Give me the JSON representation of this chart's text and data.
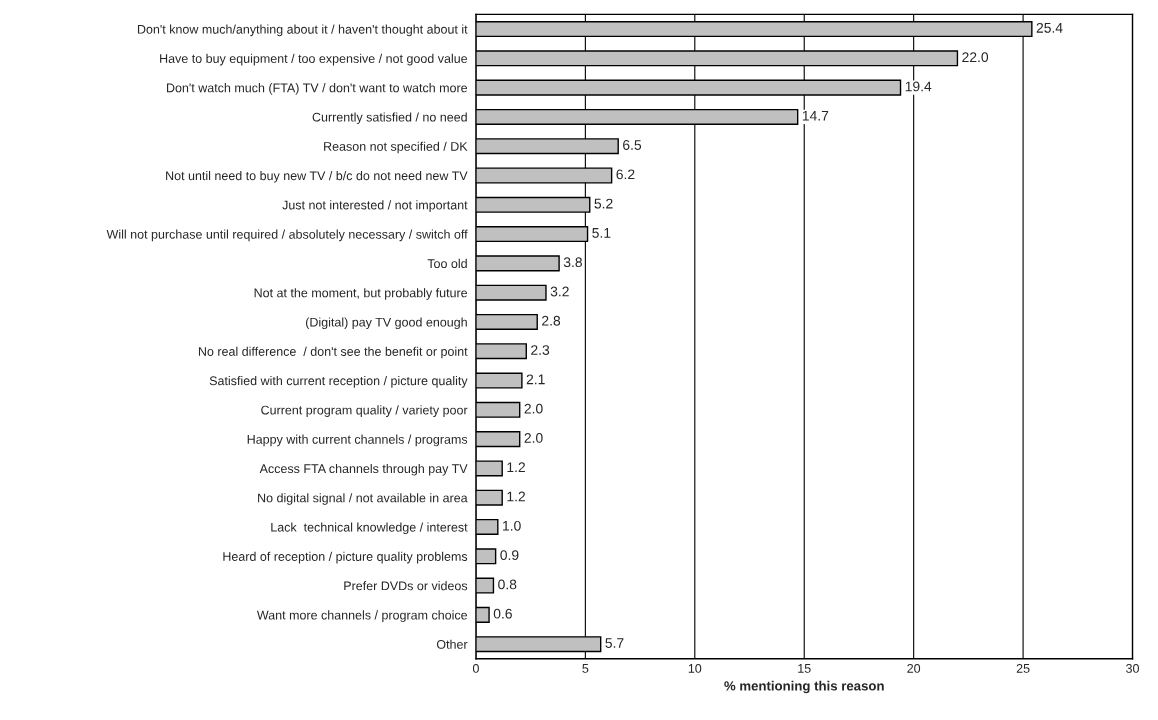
{
  "chart_data": {
    "type": "bar",
    "orientation": "horizontal",
    "xlabel": "% mentioning this reason",
    "categories": [
      "Don't know much/anything about it / haven't thought about it",
      "Have to buy equipment / too expensive / not good value",
      "Don't watch much (FTA) TV / don't want to watch more",
      "Currently satisfied / no need",
      "Reason not specified / DK",
      "Not until need to buy new TV / b/c do not need new TV",
      "Just not interested / not important",
      "Will not purchase until required / absolutely necessary / switch off",
      "Too old",
      "Not at the moment, but probably future",
      "(Digital) pay TV good enough",
      "No real difference  / don't see the benefit or point",
      "Satisfied with current reception / picture quality",
      "Current program quality / variety poor",
      "Happy with current channels / programs",
      "Access FTA channels through pay TV",
      "No digital signal / not available in area",
      "Lack  technical knowledge / interest",
      "Heard of reception / picture quality problems",
      "Prefer DVDs or videos",
      "Want more channels / program choice",
      "Other"
    ],
    "values": [
      25.4,
      22.0,
      19.4,
      14.7,
      6.5,
      6.2,
      5.2,
      5.1,
      3.8,
      3.2,
      2.8,
      2.3,
      2.1,
      2.0,
      2.0,
      1.2,
      1.2,
      1.0,
      0.9,
      0.8,
      0.6,
      5.7
    ],
    "value_labels": [
      "25.4",
      "22.0",
      "19.4",
      "14.7",
      "6.5",
      "6.2",
      "5.2",
      "5.1",
      "3.8",
      "3.2",
      "2.8",
      "2.3",
      "2.1",
      "2.0",
      "2.0",
      "1.2",
      "1.2",
      "1.0",
      "0.9",
      "0.8",
      "0.6",
      "5.7"
    ],
    "color": "#c0c0c0",
    "xlim": [
      0,
      30
    ],
    "xticks": [
      0,
      5,
      10,
      15,
      20,
      25,
      30
    ],
    "grid": "x",
    "legend": false
  }
}
